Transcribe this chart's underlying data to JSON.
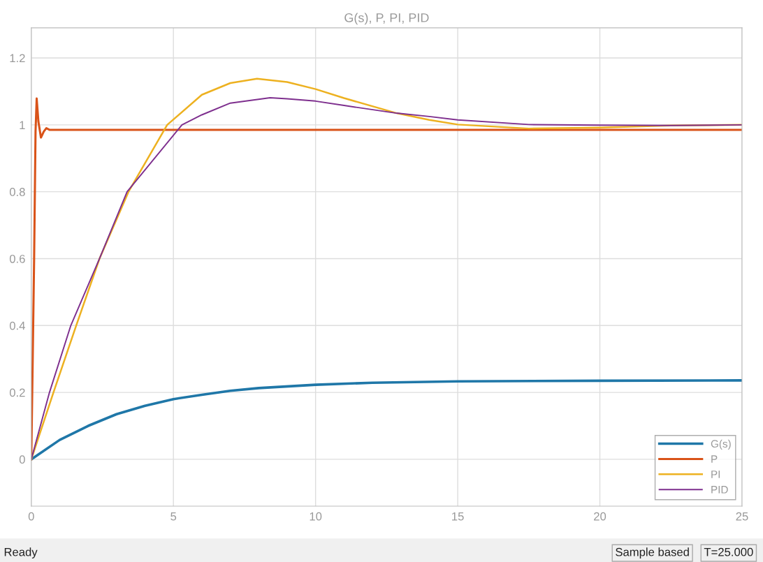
{
  "chart_data": {
    "type": "line",
    "title": "G(s), P, PI, PID",
    "xlim": [
      0,
      25
    ],
    "xticks": [
      0,
      5,
      10,
      15,
      20,
      25
    ],
    "ylim": [
      -0.14,
      1.29
    ],
    "yticks": [
      0,
      0.2,
      0.4,
      0.6,
      0.8,
      1,
      1.2
    ],
    "grid": true,
    "legend": "bottom right",
    "marker": "none",
    "line_style": "solid",
    "series": [
      {
        "name": "G(s)",
        "color": "#1f77a8",
        "x": [
          0,
          1,
          2,
          3,
          4,
          5,
          6,
          7,
          8,
          10,
          12,
          15,
          20,
          25
        ],
        "values": [
          0,
          0.058,
          0.1,
          0.135,
          0.16,
          0.18,
          0.193,
          0.205,
          0.213,
          0.223,
          0.229,
          0.233,
          0.235,
          0.236
        ]
      },
      {
        "name": "P",
        "color": "#d95319",
        "x": [
          0,
          0.1,
          0.15,
          0.19,
          0.25,
          0.34,
          0.44,
          0.53,
          0.65,
          25
        ],
        "values": [
          0,
          0.6,
          0.98,
          1.079,
          1.01,
          0.962,
          0.98,
          0.99,
          0.985,
          0.985
        ]
      },
      {
        "name": "PI",
        "color": "#edb120",
        "x": [
          0,
          0.78,
          1.58,
          2.4,
          3.42,
          4.78,
          6,
          7,
          7.94,
          9,
          10,
          11,
          12.85,
          14,
          15,
          17.5,
          20,
          22.5,
          25
        ],
        "values": [
          0,
          0.2,
          0.4,
          0.6,
          0.8,
          1.0,
          1.09,
          1.125,
          1.138,
          1.128,
          1.107,
          1.08,
          1.035,
          1.015,
          1.001,
          0.989,
          0.992,
          0.998,
          1.0
        ]
      },
      {
        "name": "PID",
        "color": "#7e2f8e",
        "x": [
          0,
          0.64,
          1.39,
          2.4,
          3.37,
          5.3,
          6,
          7,
          8.4,
          9,
          10,
          11,
          12.85,
          14,
          15,
          17.5,
          20,
          22.5,
          25
        ],
        "values": [
          0,
          0.2,
          0.4,
          0.6,
          0.8,
          1.0,
          1.03,
          1.065,
          1.081,
          1.078,
          1.071,
          1.058,
          1.035,
          1.025,
          1.015,
          1.001,
          0.999,
          0.998,
          1.0
        ]
      }
    ],
    "annotations": [
      "Ready",
      "Sample based",
      "T=25.000"
    ]
  }
}
